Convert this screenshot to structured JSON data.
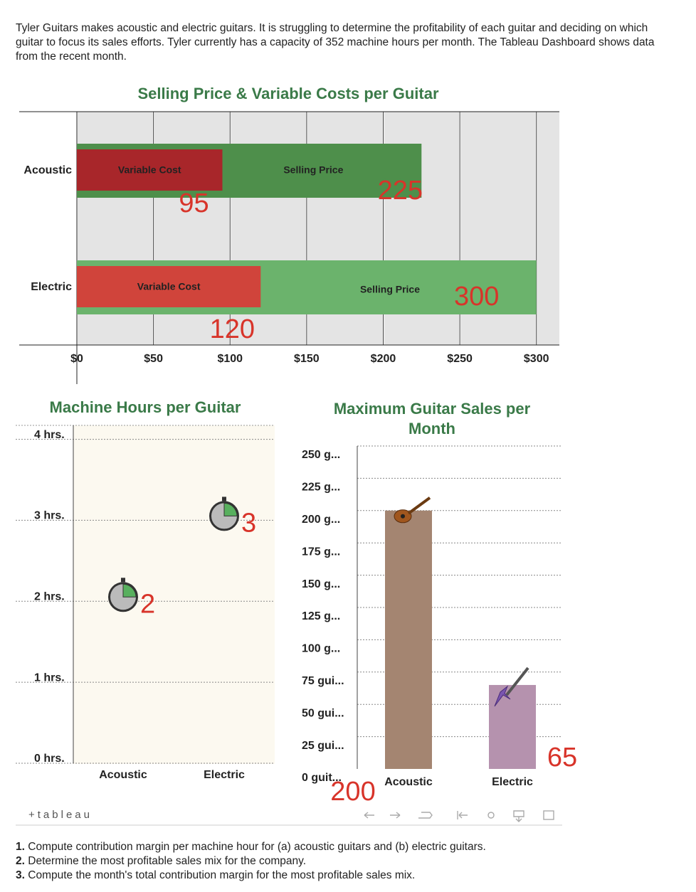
{
  "intro": "Tyler Guitars makes acoustic and electric guitars. It is struggling to determine the profitability of each guitar and deciding on which guitar to focus its sales efforts. Tyler currently has a capacity of 352 machine hours per month. The Tableau Dashboard shows data from the recent month.",
  "chart_data": [
    {
      "type": "overlay-bar",
      "orientation": "horizontal",
      "title": "Selling Price & Variable Costs per Guitar",
      "categories": [
        "Acoustic",
        "Electric"
      ],
      "series": [
        {
          "name": "Selling Price",
          "colors": [
            "#4e8f4b",
            "#6bb36c"
          ],
          "values": [
            225,
            300
          ]
        },
        {
          "name": "Variable Cost",
          "colors": [
            "#a8262a",
            "#d0443b"
          ],
          "values": [
            95,
            120
          ]
        }
      ],
      "xlim": [
        0,
        315
      ],
      "xticks": [
        {
          "value": 0,
          "label": "$0"
        },
        {
          "value": 50,
          "label": "$50"
        },
        {
          "value": 100,
          "label": "$100"
        },
        {
          "value": 150,
          "label": "$150"
        },
        {
          "value": 200,
          "label": "$200"
        },
        {
          "value": 250,
          "label": "$250"
        },
        {
          "value": 300,
          "label": "$300"
        }
      ],
      "grid": true
    },
    {
      "type": "stopwatch",
      "title": "Machine Hours per Guitar",
      "categories": [
        "Acoustic",
        "Electric"
      ],
      "values": [
        2,
        3
      ],
      "color": "#58b05e",
      "ylim": [
        0,
        4.15
      ],
      "yticks": [
        {
          "value": 4,
          "label": "4 hrs."
        },
        {
          "value": 3,
          "label": "3 hrs."
        },
        {
          "value": 2,
          "label": "2 hrs."
        },
        {
          "value": 1,
          "label": "1 hrs."
        },
        {
          "value": 0,
          "label": "0 hrs."
        }
      ],
      "grid": true
    },
    {
      "type": "bar",
      "title": "Maximum Guitar Sales per Month",
      "categories": [
        "Acoustic",
        "Electric"
      ],
      "values": [
        200,
        65
      ],
      "colors": [
        "#a48571",
        "#b592ae"
      ],
      "ylim": [
        0,
        250
      ],
      "yticks": [
        {
          "value": 250,
          "label": "250 g..."
        },
        {
          "value": 225,
          "label": "225 g..."
        },
        {
          "value": 200,
          "label": "200 g..."
        },
        {
          "value": 175,
          "label": "175 g..."
        },
        {
          "value": 150,
          "label": "150 g..."
        },
        {
          "value": 125,
          "label": "125 g..."
        },
        {
          "value": 100,
          "label": "100 g..."
        },
        {
          "value": 75,
          "label": "75 gui..."
        },
        {
          "value": 50,
          "label": "50 gui..."
        },
        {
          "value": 25,
          "label": "25 gui..."
        },
        {
          "value": 0,
          "label": "0 guit..."
        }
      ],
      "grid": true
    }
  ],
  "tableau_logo": "+tableau",
  "questions": [
    {
      "number": "1.",
      "text": "Compute contribution margin per machine hour for (a) acoustic guitars and (b) electric guitars."
    },
    {
      "number": "2.",
      "text": "Determine the most profitable sales mix for the company."
    },
    {
      "number": "3.",
      "text": "Compute the month's total contribution margin for the most profitable sales mix."
    }
  ]
}
